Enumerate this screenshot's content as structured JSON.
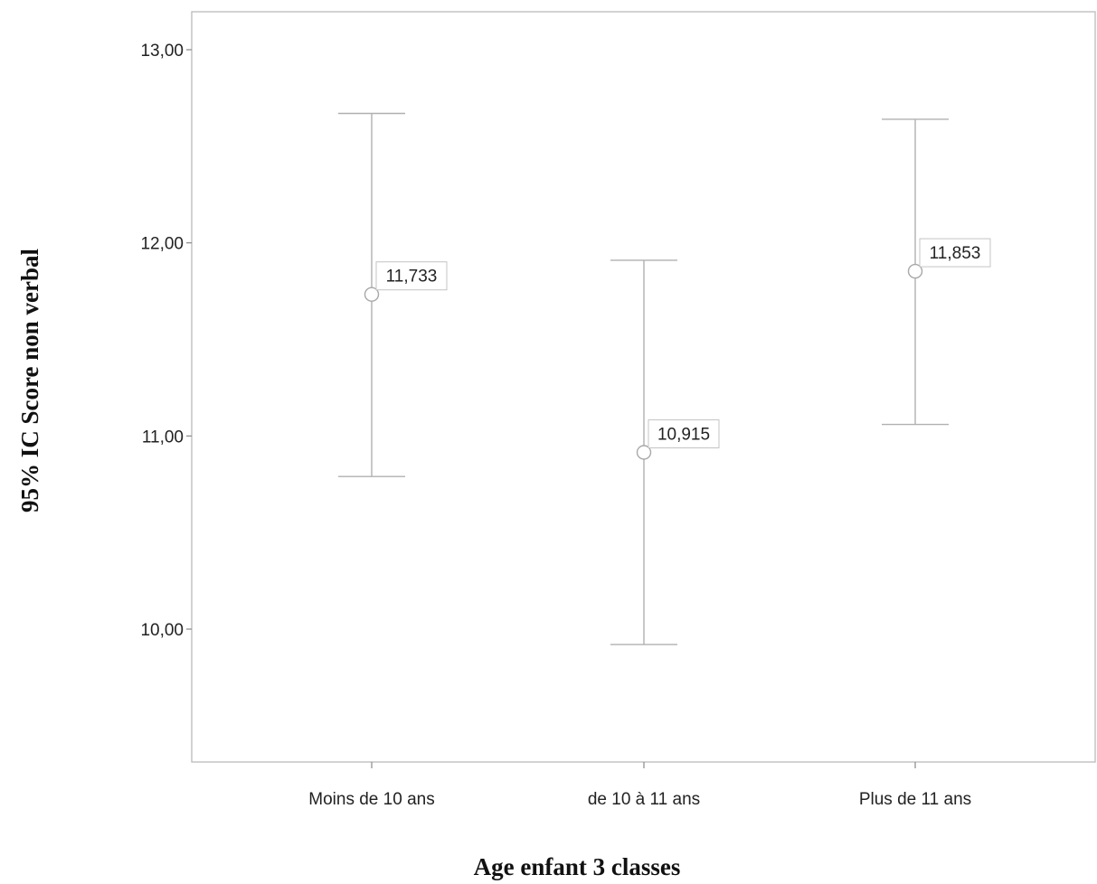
{
  "chart_data": {
    "type": "errorbar",
    "xlabel": "Age enfant 3 classes",
    "ylabel": "95% IC Score non verbal",
    "ylim": [
      9.3,
      13.2
    ],
    "yticks": [
      10.0,
      11.0,
      12.0,
      13.0
    ],
    "ytick_labels": [
      "10,00",
      "11,00",
      "12,00",
      "13,00"
    ],
    "grid": false,
    "categories": [
      "Moins de 10 ans",
      "de 10 à 11 ans",
      "Plus de 11 ans"
    ],
    "means": [
      11.733,
      10.915,
      11.853
    ],
    "mean_labels": [
      "11,733",
      "10,915",
      "11,853"
    ],
    "ci_lower": [
      10.79,
      9.92,
      11.06
    ],
    "ci_upper": [
      12.67,
      11.91,
      12.64
    ],
    "colors": {
      "frame": "#bbbbbb",
      "errorbar": "#b0b0b0",
      "marker": "#a8a8a8",
      "text": "#222222"
    }
  }
}
